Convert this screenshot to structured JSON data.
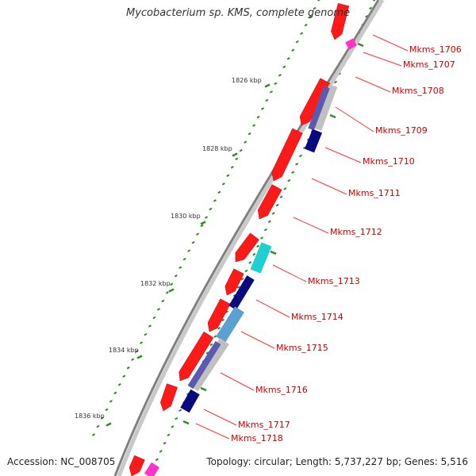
{
  "title": "Mycobacterium sp. KMS, complete genome",
  "accession": "Accession: NC_008705",
  "summary": "Topology: circular; Length: 5,737,227 bp; Genes: 5,516",
  "colors": {
    "backbone": "#808080",
    "cds_forward": "#ff1a1a",
    "tick": "#2e8b22",
    "label": "#cc0000",
    "leader": "#ff3333",
    "kbp_text": "#333333"
  },
  "kbp_labels": [
    "1826 kbp",
    "1828 kbp",
    "1830 kbp",
    "1832 kbp",
    "1834 kbp",
    "1836 kbp"
  ],
  "genes": [
    {
      "label": "Mkms_1706"
    },
    {
      "label": "Mkms_1707"
    },
    {
      "label": "Mkms_1708"
    },
    {
      "label": "Mkms_1709"
    },
    {
      "label": "Mkms_1710"
    },
    {
      "label": "Mkms_1711"
    },
    {
      "label": "Mkms_1712"
    },
    {
      "label": "Mkms_1713"
    },
    {
      "label": "Mkms_1714"
    },
    {
      "label": "Mkms_1715"
    },
    {
      "label": "Mkms_1716"
    },
    {
      "label": "Mkms_1717"
    },
    {
      "label": "Mkms_1718"
    }
  ]
}
